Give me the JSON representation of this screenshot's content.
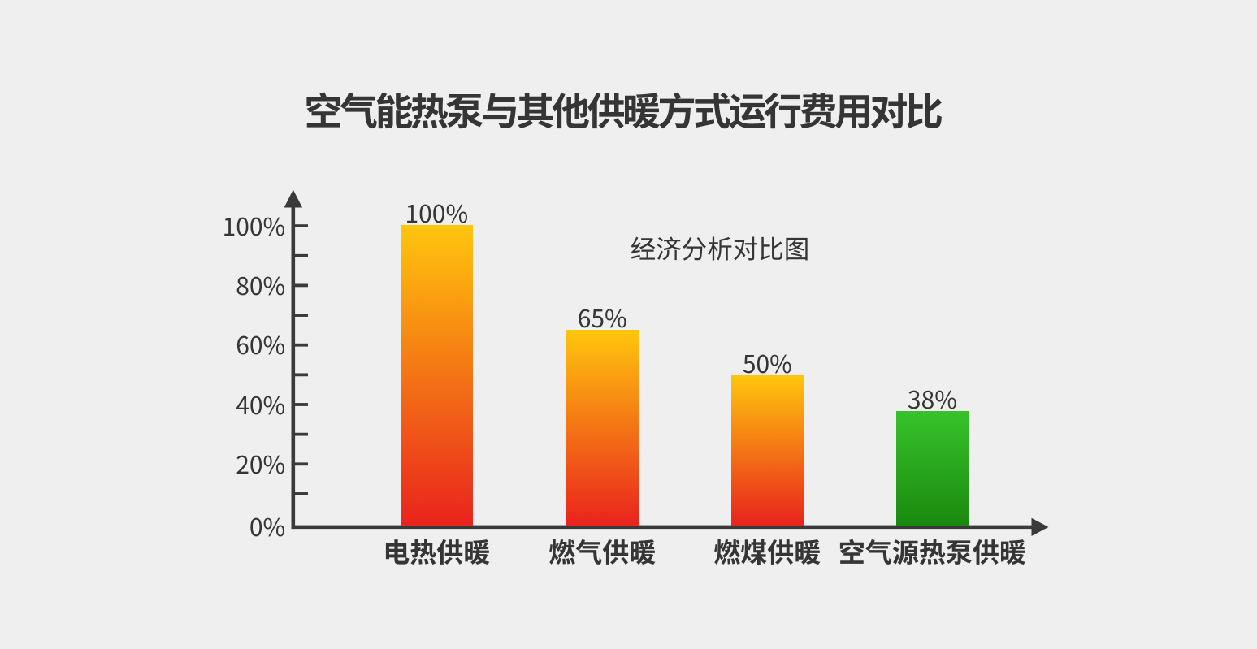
{
  "colors": {
    "background": "#efefef",
    "ink": "#353535",
    "axis": "#3a3a3a",
    "warm_bar_top": "#ffc60d",
    "warm_bar_bottom": "#e9231d",
    "green_bar_top": "#37c32a",
    "green_bar_bottom": "#1a890f"
  },
  "chart_data": {
    "type": "bar",
    "title": "空气能热泵与其他供暖方式运行费用对比",
    "annotation": "经济分析对比图",
    "categories": [
      "电热供暖",
      "燃气供暖",
      "燃煤供暖",
      "空气源热泵供暖"
    ],
    "values": [
      100,
      65,
      50,
      38
    ],
    "bar_value_labels": [
      "100%",
      "65%",
      "50%",
      "38%"
    ],
    "bar_palette": [
      "warm",
      "warm",
      "warm",
      "green"
    ],
    "xlabel": "",
    "ylabel": "",
    "ylim": [
      0,
      100
    ],
    "y_tick_labels": [
      "0%",
      "20%",
      "40%",
      "60%",
      "80%",
      "100%"
    ],
    "y_minor_tick_step_pct": 10,
    "grid": false,
    "legend": null
  }
}
